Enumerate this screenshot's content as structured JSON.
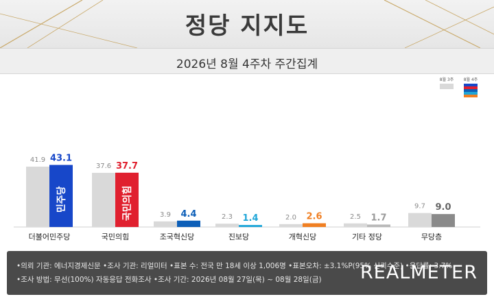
{
  "header": {
    "title": "정당 지지도",
    "subtitle": "2026년 8월 4주차 주간집계"
  },
  "legend": {
    "prev": "8월 3주",
    "curr": "8월 4주"
  },
  "chart_data": {
    "type": "bar",
    "categories": [
      "더불어민주당",
      "국민의힘",
      "조국혁신당",
      "진보당",
      "개혁신당",
      "기타 정당",
      "무당층"
    ],
    "series": [
      {
        "name": "8월 3주",
        "values": [
          41.9,
          37.6,
          3.9,
          2.3,
          2.0,
          2.5,
          9.7
        ]
      },
      {
        "name": "8월 4주",
        "values": [
          43.1,
          37.7,
          4.4,
          1.4,
          2.6,
          1.7,
          9.0
        ]
      }
    ],
    "colors": {
      "prev": "#d9d9d9",
      "curr": [
        "#1747c9",
        "#e0202f",
        "#0d5fb8",
        "#1fa6d8",
        "#f07f22",
        "#b8b8b8",
        "#8a8a8a"
      ]
    },
    "label_colors": [
      "#1747c9",
      "#e0202f",
      "#0d5fb8",
      "#1fa6d8",
      "#f07f22",
      "#9a9a9a",
      "#666666"
    ],
    "bar_logos": [
      "민주당",
      "국민의힘"
    ],
    "ylim": [
      0,
      45
    ]
  },
  "footer": {
    "line1": "•의뢰 기관: 에너지경제신문  •조사 기관: 리얼미터  •표본 수: 전국 만 18세 이상 1,006명  •표본오차: ±3.1%P(95% 신뢰수준)  •응답률: 3.7%",
    "line2": "•조사 방법: 무선(100%) 자동응답 전화조사  •조사 기간: 2026년 08월 27일(목) ~ 08월 28일(금)",
    "brand": "REALMETER"
  }
}
